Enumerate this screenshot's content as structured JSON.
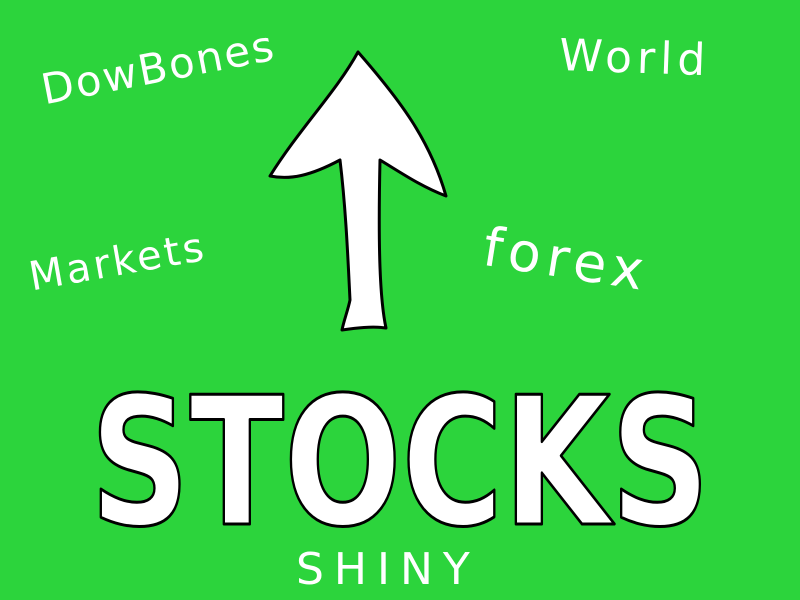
{
  "background": {
    "color": "#2cd43c"
  },
  "ink": {
    "fill": "#ffffff",
    "outline": "#000000"
  },
  "arrow": {
    "icon": "up-arrow-icon",
    "direction": "up"
  },
  "headline": "STOCKS",
  "words": {
    "dow_bones": "DowBones",
    "world": "World",
    "markets": "Markets",
    "forex": "forex",
    "shiny": "SHINY"
  }
}
